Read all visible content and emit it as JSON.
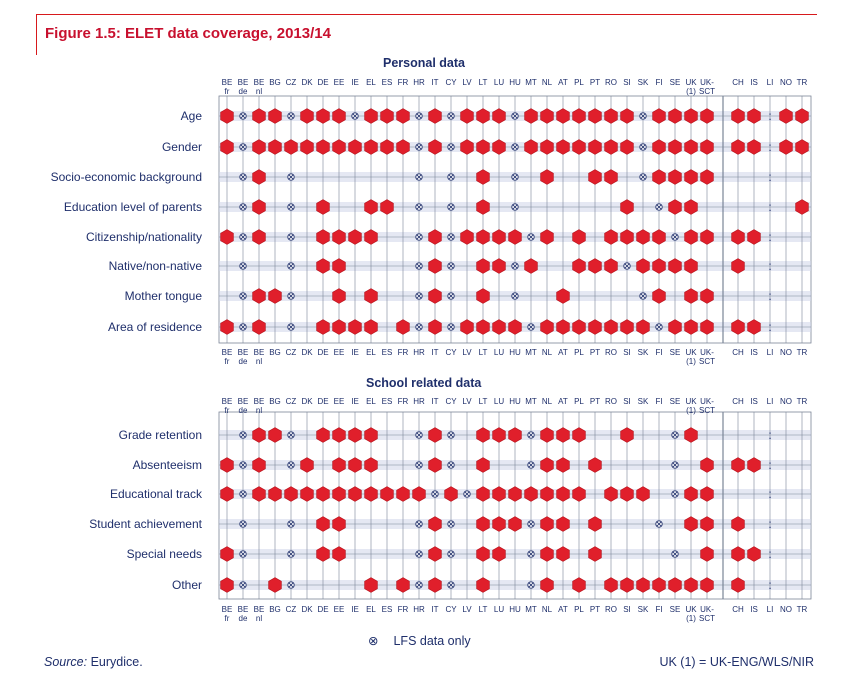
{
  "title": "Figure 1.5: ELET data coverage, 2013/14",
  "colors": {
    "accent": "#c8102e",
    "marker": "#e01f2b",
    "text": "#1f2f6b",
    "band": "#cfd6ea",
    "line": "#7a8597"
  },
  "countries": [
    {
      "top": "BE",
      "bot": "fr"
    },
    {
      "top": "BE",
      "bot": "de"
    },
    {
      "top": "BE",
      "bot": "nl"
    },
    {
      "top": "BG",
      "bot": ""
    },
    {
      "top": "CZ",
      "bot": ""
    },
    {
      "top": "DK",
      "bot": ""
    },
    {
      "top": "DE",
      "bot": ""
    },
    {
      "top": "EE",
      "bot": ""
    },
    {
      "top": "IE",
      "bot": ""
    },
    {
      "top": "EL",
      "bot": ""
    },
    {
      "top": "ES",
      "bot": ""
    },
    {
      "top": "FR",
      "bot": ""
    },
    {
      "top": "HR",
      "bot": ""
    },
    {
      "top": "IT",
      "bot": ""
    },
    {
      "top": "CY",
      "bot": ""
    },
    {
      "top": "LV",
      "bot": ""
    },
    {
      "top": "LT",
      "bot": ""
    },
    {
      "top": "LU",
      "bot": ""
    },
    {
      "top": "HU",
      "bot": ""
    },
    {
      "top": "MT",
      "bot": ""
    },
    {
      "top": "NL",
      "bot": ""
    },
    {
      "top": "AT",
      "bot": ""
    },
    {
      "top": "PL",
      "bot": ""
    },
    {
      "top": "PT",
      "bot": ""
    },
    {
      "top": "RO",
      "bot": ""
    },
    {
      "top": "SI",
      "bot": ""
    },
    {
      "top": "SK",
      "bot": ""
    },
    {
      "top": "FI",
      "bot": ""
    },
    {
      "top": "SE",
      "bot": ""
    },
    {
      "top": "UK",
      "bot": "(1)"
    },
    {
      "top": "UK-",
      "bot": "SCT"
    },
    {
      "top": "CH",
      "bot": ""
    },
    {
      "top": "IS",
      "bot": ""
    },
    {
      "top": "LI",
      "bot": ""
    },
    {
      "top": "NO",
      "bot": ""
    },
    {
      "top": "TR",
      "bot": ""
    }
  ],
  "legend": {
    "symbol": "⊗",
    "label": "LFS data only"
  },
  "source_label": "Source:",
  "source_value": "Eurydice.",
  "uk_note": "UK (1) = UK-ENG/WLS/NIR",
  "sections": [
    {
      "title": "Personal data",
      "rows": [
        {
          "label": "Age",
          "codes": "HxHHxHHHxHHHxHxHHHxHHHHHHHxHHHHHH:HH"
        },
        {
          "label": "Gender",
          "codes": "HxHHHHHHHHHHxHxHHHxHHHHHHHxHHHHHH:HH"
        },
        {
          "label": "Socio-economic background",
          "codes": ".xH.x.......x.x.H.x.H..HH.xHHHH..:.."
        },
        {
          "label": "Education level of parents",
          "codes": ".xH.x.H..HH.x.x.H.x......H.xHH....:HH"
        },
        {
          "label": "Citizenship/nationality",
          "codes": "HxH.x.HHHH..xHxHHHHxH.H.HHHHxHHHH..:H."
        },
        {
          "label": "Native/non-native",
          "codes": ".x..x.HH....xHx.HHxH..HHHxHHHH.H..:.."
        },
        {
          "label": "Mother tongue",
          "codes": ".xHHx..H.H..xHx.H.x..H....xH.HH...:.."
        },
        {
          "label": "Area of residence",
          "codes": "HxH.x.HHHH.HxHxHHHHxHHHHHHHxHHHHH..:HH"
        }
      ]
    },
    {
      "title": "School related data",
      "rows": [
        {
          "label": "Grade retention",
          "codes": ".xHHx.HHHH..xHx.HHHxHHH..H..xH.....:.H"
        },
        {
          "label": "Absenteeism",
          "codes": "HxH.xH.HHH..xHx.H..xHH.H....x.HHH..:.H"
        },
        {
          "label": "Educational track",
          "codes": "HxHHHHHHHHHHHxHxHHHHHHH.HHH.xHH....:H."
        },
        {
          "label": "Student achievement",
          "codes": ".x..x.HH....xHx.HHHxHH.H...x.HHH..:.H"
        },
        {
          "label": "Special needs",
          "codes": "Hx..x.HH....xHx.HH.xHH.H....x.HHH..:HH"
        },
        {
          "label": "Other",
          "codes": "Hx.Hx....H.HxHx.H..xH.H.HHHHHHHH..:.."
        }
      ]
    }
  ]
}
